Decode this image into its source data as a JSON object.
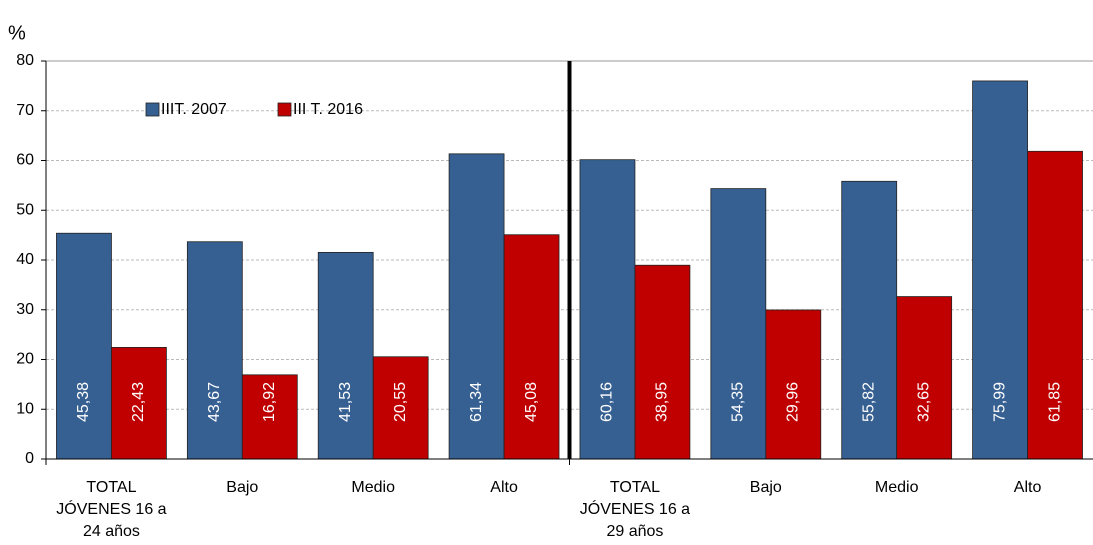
{
  "chart_data": {
    "type": "bar",
    "ylabel": "%",
    "categories": [
      "TOTAL JÓVENES 16 a 24 años",
      "Bajo",
      "Medio",
      "Alto",
      "TOTAL JÓVENES 16 a 29 años",
      "Bajo",
      "Medio",
      "Alto"
    ],
    "series": [
      {
        "name": "IIIT. 2007",
        "color": "#376092",
        "values": [
          45.38,
          43.67,
          41.53,
          61.34,
          60.16,
          54.35,
          55.82,
          75.99
        ],
        "value_labels": [
          "45,38",
          "43,67",
          "41,53",
          "61,34",
          "60,16",
          "54,35",
          "55,82",
          "75,99"
        ]
      },
      {
        "name": "III T. 2016",
        "color": "#c00000",
        "values": [
          22.43,
          16.92,
          20.55,
          45.08,
          38.95,
          29.96,
          32.65,
          61.85
        ],
        "value_labels": [
          "22,43",
          "16,92",
          "20,55",
          "45,08",
          "38,95",
          "29,96",
          "32,65",
          "61,85"
        ]
      }
    ],
    "ylim": [
      0,
      80
    ],
    "yticks": [
      0,
      10,
      20,
      30,
      40,
      50,
      60,
      70,
      80
    ],
    "grid": true,
    "legend": "upper left"
  }
}
